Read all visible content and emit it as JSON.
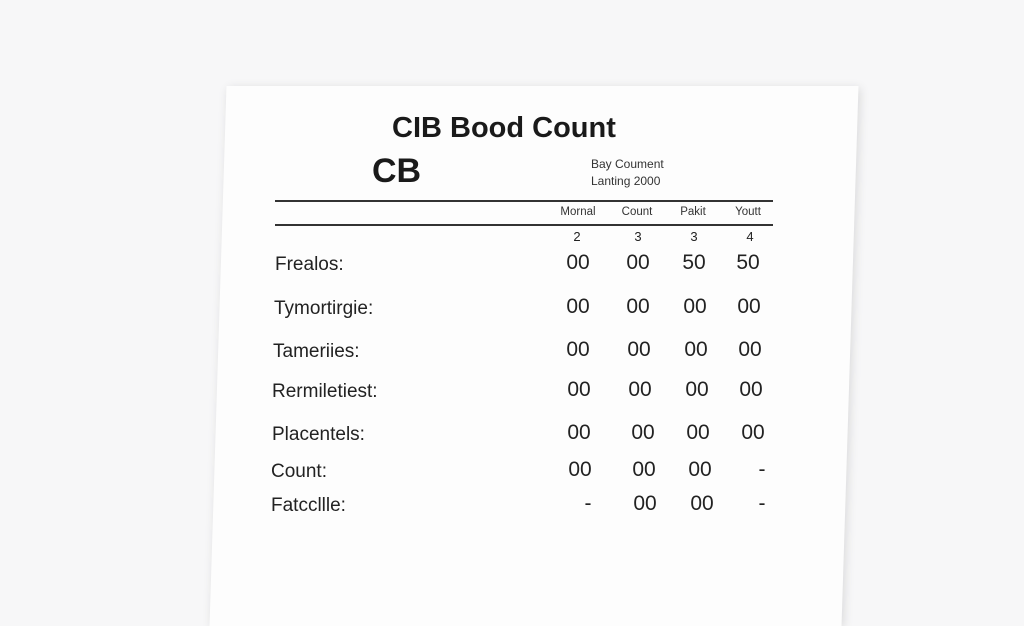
{
  "document": {
    "title": "CIB Bood Count",
    "logo_text": "CB",
    "subtitle_lines": [
      "Bay Coument",
      "Lanting 2000"
    ],
    "columns": [
      "Mornal",
      "Count",
      "Pakit",
      "Youtt"
    ],
    "column_numbers": [
      "2",
      "3",
      "3",
      "4"
    ],
    "rows": [
      {
        "label": "Frealos:",
        "values": [
          "00",
          "00",
          "50",
          "50"
        ]
      },
      {
        "label": "Tymortirgie:",
        "values": [
          "00",
          "00",
          "00",
          "00"
        ]
      },
      {
        "label": "Tameriies:",
        "values": [
          "00",
          "00",
          "00",
          "00"
        ]
      },
      {
        "label": "Rermiletiest:",
        "values": [
          "00",
          "00",
          "00",
          "00"
        ]
      },
      {
        "label": "Placentels:",
        "values": [
          "00",
          "00",
          "00",
          "00"
        ]
      },
      {
        "label": "Count:",
        "values": [
          "00",
          "00",
          "00",
          "-"
        ]
      },
      {
        "label": "Fatccllle:",
        "values": [
          "-",
          "00",
          "00",
          "-"
        ]
      }
    ]
  }
}
